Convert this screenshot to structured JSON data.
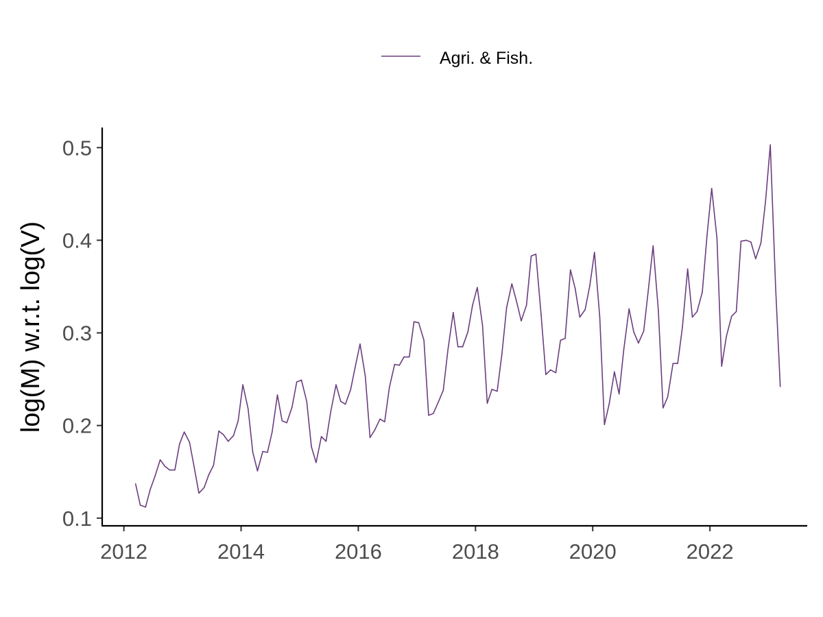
{
  "chart_data": {
    "type": "line",
    "title": "",
    "xlabel": "",
    "ylabel": "log(M) w.r.t. log(V)",
    "xlim": [
      2011.63,
      2023.66
    ],
    "ylim": [
      0.0917,
      0.5217
    ],
    "x_ticks": [
      2012,
      2014,
      2016,
      2018,
      2020,
      2022
    ],
    "x_tick_labels": [
      "2012",
      "2014",
      "2016",
      "2018",
      "2020",
      "2022"
    ],
    "y_ticks": [
      0.1,
      0.2,
      0.3,
      0.4,
      0.5
    ],
    "y_tick_labels": [
      "0.1",
      "0.2",
      "0.3",
      "0.4",
      "0.5"
    ],
    "grid": false,
    "legend_position": "top",
    "series": [
      {
        "name": "Agri. & Fish.",
        "color": "#6a3d7e",
        "x": [
          2012.2,
          2012.28,
          2012.37,
          2012.45,
          2012.53,
          2012.62,
          2012.7,
          2012.78,
          2012.87,
          2012.95,
          2013.03,
          2013.12,
          2013.2,
          2013.28,
          2013.37,
          2013.45,
          2013.53,
          2013.62,
          2013.7,
          2013.78,
          2013.87,
          2013.95,
          2014.03,
          2014.12,
          2014.2,
          2014.28,
          2014.37,
          2014.45,
          2014.53,
          2014.62,
          2014.7,
          2014.78,
          2014.87,
          2014.95,
          2015.03,
          2015.12,
          2015.2,
          2015.28,
          2015.37,
          2015.45,
          2015.53,
          2015.62,
          2015.7,
          2015.78,
          2015.87,
          2015.95,
          2016.03,
          2016.12,
          2016.2,
          2016.28,
          2016.37,
          2016.45,
          2016.53,
          2016.62,
          2016.7,
          2016.78,
          2016.87,
          2016.95,
          2017.03,
          2017.12,
          2017.2,
          2017.28,
          2017.37,
          2017.45,
          2017.53,
          2017.62,
          2017.7,
          2017.78,
          2017.87,
          2017.95,
          2018.03,
          2018.12,
          2018.2,
          2018.28,
          2018.37,
          2018.45,
          2018.53,
          2018.62,
          2018.7,
          2018.78,
          2018.87,
          2018.95,
          2019.03,
          2019.12,
          2019.2,
          2019.28,
          2019.37,
          2019.45,
          2019.53,
          2019.62,
          2019.7,
          2019.78,
          2019.87,
          2019.95,
          2020.03,
          2020.12,
          2020.2,
          2020.28,
          2020.37,
          2020.45,
          2020.53,
          2020.62,
          2020.7,
          2020.78,
          2020.87,
          2020.95,
          2021.03,
          2021.12,
          2021.2,
          2021.28,
          2021.37,
          2021.45,
          2021.53,
          2021.62,
          2021.7,
          2021.78,
          2021.87,
          2021.95,
          2022.03,
          2022.12,
          2022.2,
          2022.28,
          2022.37,
          2022.45,
          2022.53,
          2022.62,
          2022.7,
          2022.78,
          2022.87,
          2022.95,
          2023.03,
          2023.12,
          2023.2
        ],
        "y": [
          0.137,
          0.114,
          0.112,
          0.131,
          0.145,
          0.163,
          0.156,
          0.152,
          0.152,
          0.18,
          0.193,
          0.182,
          0.155,
          0.127,
          0.133,
          0.147,
          0.157,
          0.194,
          0.19,
          0.183,
          0.189,
          0.205,
          0.244,
          0.218,
          0.171,
          0.151,
          0.172,
          0.171,
          0.193,
          0.233,
          0.205,
          0.203,
          0.22,
          0.247,
          0.249,
          0.226,
          0.177,
          0.16,
          0.188,
          0.183,
          0.215,
          0.244,
          0.226,
          0.223,
          0.239,
          0.264,
          0.288,
          0.253,
          0.187,
          0.195,
          0.207,
          0.204,
          0.241,
          0.266,
          0.265,
          0.274,
          0.274,
          0.312,
          0.311,
          0.292,
          0.211,
          0.213,
          0.226,
          0.238,
          0.282,
          0.322,
          0.285,
          0.285,
          0.301,
          0.33,
          0.349,
          0.308,
          0.224,
          0.239,
          0.237,
          0.277,
          0.327,
          0.353,
          0.334,
          0.313,
          0.33,
          0.383,
          0.385,
          0.319,
          0.255,
          0.26,
          0.257,
          0.292,
          0.294,
          0.368,
          0.348,
          0.317,
          0.325,
          0.351,
          0.387,
          0.317,
          0.201,
          0.223,
          0.258,
          0.234,
          0.282,
          0.326,
          0.301,
          0.289,
          0.302,
          0.347,
          0.394,
          0.324,
          0.219,
          0.231,
          0.267,
          0.267,
          0.306,
          0.369,
          0.317,
          0.323,
          0.344,
          0.405,
          0.456,
          0.402,
          0.264,
          0.296,
          0.318,
          0.323,
          0.399,
          0.4,
          0.398,
          0.38,
          0.397,
          0.443,
          0.503,
          0.35,
          0.242
        ]
      }
    ]
  }
}
